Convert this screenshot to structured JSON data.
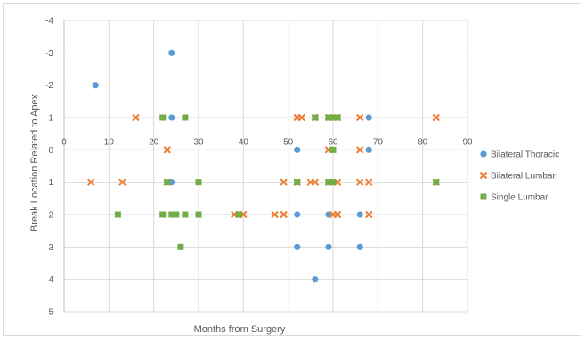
{
  "chart_data": {
    "type": "scatter",
    "title": "",
    "xlabel": "Months from Surgery",
    "ylabel": "Break Location Related to Apex",
    "xlim": [
      0,
      90
    ],
    "ylim": [
      -4,
      5
    ],
    "y_reversed": true,
    "x_ticks": [
      0,
      10,
      20,
      30,
      40,
      50,
      60,
      70,
      80,
      90
    ],
    "y_ticks": [
      -4,
      -3,
      -2,
      -1,
      0,
      1,
      2,
      3,
      4,
      5
    ],
    "y_tick_labels": [
      "-4",
      "-3",
      "-2",
      "-1",
      "0",
      "1",
      "2",
      "3",
      "4",
      "5"
    ],
    "grid": true,
    "legend_position": "right",
    "series": [
      {
        "name": "Bilateral Thoracic",
        "marker": "circle",
        "color": "#5b9bd5",
        "points": [
          [
            7,
            -2
          ],
          [
            24,
            -3
          ],
          [
            24,
            -1
          ],
          [
            68,
            -1
          ],
          [
            52,
            0
          ],
          [
            68,
            0
          ],
          [
            24,
            1
          ],
          [
            52,
            2
          ],
          [
            59,
            2
          ],
          [
            66,
            2
          ],
          [
            52,
            3
          ],
          [
            59,
            3
          ],
          [
            66,
            3
          ],
          [
            56,
            4
          ]
        ]
      },
      {
        "name": "Bilateral Lumbar",
        "marker": "x",
        "color": "#ed7d31",
        "points": [
          [
            16,
            -1
          ],
          [
            52,
            -1
          ],
          [
            53,
            -1
          ],
          [
            56,
            -1
          ],
          [
            59,
            -1
          ],
          [
            61,
            -1
          ],
          [
            66,
            -1
          ],
          [
            83,
            -1
          ],
          [
            23,
            0
          ],
          [
            59,
            0
          ],
          [
            66,
            0
          ],
          [
            6,
            1
          ],
          [
            13,
            1
          ],
          [
            23,
            1
          ],
          [
            49,
            1
          ],
          [
            52,
            1
          ],
          [
            55,
            1
          ],
          [
            56,
            1
          ],
          [
            59,
            1
          ],
          [
            61,
            1
          ],
          [
            66,
            1
          ],
          [
            68,
            1
          ],
          [
            83,
            1
          ],
          [
            38,
            2
          ],
          [
            39,
            2
          ],
          [
            40,
            2
          ],
          [
            47,
            2
          ],
          [
            49,
            2
          ],
          [
            60,
            2
          ],
          [
            61,
            2
          ],
          [
            68,
            2
          ]
        ]
      },
      {
        "name": "Single Lumbar",
        "marker": "square",
        "color": "#70ad47",
        "points": [
          [
            22,
            -1
          ],
          [
            27,
            -1
          ],
          [
            56,
            -1
          ],
          [
            59,
            -1
          ],
          [
            60,
            -1
          ],
          [
            61,
            -1
          ],
          [
            60,
            0
          ],
          [
            23,
            1
          ],
          [
            30,
            1
          ],
          [
            52,
            1
          ],
          [
            59,
            1
          ],
          [
            60,
            1
          ],
          [
            83,
            1
          ],
          [
            12,
            2
          ],
          [
            22,
            2
          ],
          [
            24,
            2
          ],
          [
            25,
            2
          ],
          [
            27,
            2
          ],
          [
            30,
            2
          ],
          [
            39,
            2
          ],
          [
            26,
            3
          ]
        ]
      }
    ]
  }
}
